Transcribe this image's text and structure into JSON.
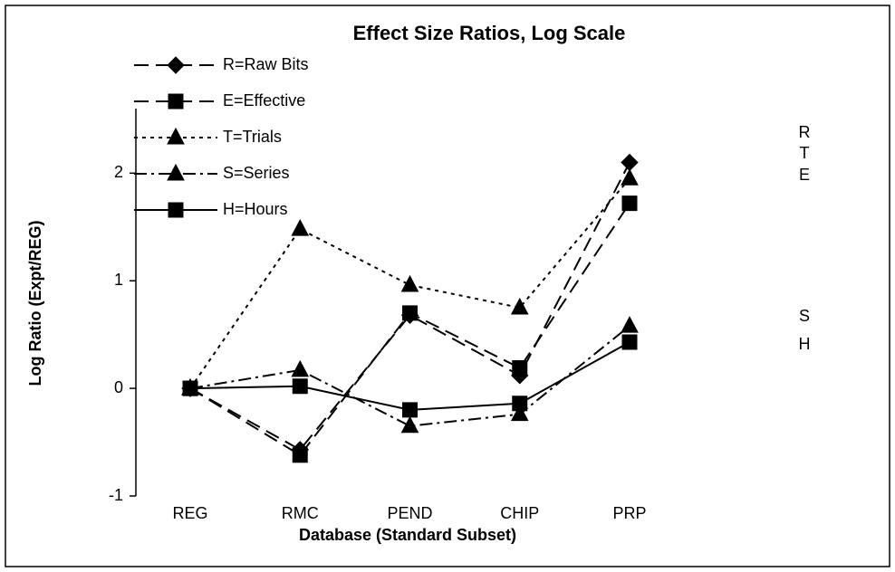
{
  "chart_data": {
    "type": "line",
    "title": "Effect Size Ratios, Log Scale",
    "x_label": "Database (Standard Subset)",
    "y_label": "Log Ratio (Expt/REG)",
    "categories": [
      "REG",
      "RMC",
      "PEND",
      "CHIP",
      "PRP"
    ],
    "ylim": [
      -1,
      2.6
    ],
    "yticks": [
      -1,
      0,
      1,
      2
    ],
    "legend": "top-left",
    "series": [
      {
        "name": "R=Raw Bits",
        "color": "#000000",
        "marker": "diamond",
        "dash": "dashed",
        "values": [
          0,
          -0.57,
          0.68,
          0.12,
          2.1
        ]
      },
      {
        "name": "E=Effective",
        "color": "#000000",
        "marker": "square",
        "dash": "dashed",
        "values": [
          0,
          -0.62,
          0.7,
          0.19,
          1.72
        ]
      },
      {
        "name": "T=Trials",
        "color": "#000000",
        "marker": "triangle",
        "dash": "dotted",
        "values": [
          0,
          1.48,
          0.96,
          0.75,
          1.95
        ]
      },
      {
        "name": "S=Series",
        "color": "#000000",
        "marker": "triangle",
        "dash": "dashdot",
        "values": [
          0,
          0.17,
          -0.35,
          -0.24,
          0.58
        ]
      },
      {
        "name": "H=Hours",
        "color": "#000000",
        "marker": "square",
        "dash": "solid",
        "values": [
          0,
          0.02,
          -0.2,
          -0.14,
          0.43
        ]
      }
    ],
    "annotations": [
      "R",
      "T",
      "E",
      "S",
      "H"
    ]
  }
}
